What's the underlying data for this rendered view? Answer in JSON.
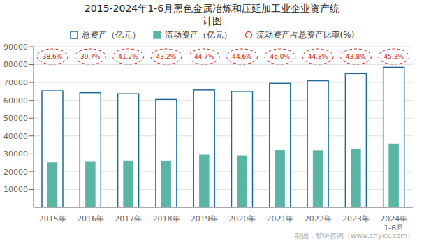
{
  "chart_data": {
    "type": "bar",
    "title": "2015-2024年1-6月黑色金属冶炼和压延加工业企业资产统\n计图",
    "categories": [
      "2015年",
      "2016年",
      "2017年",
      "2018年",
      "2019年",
      "2020年",
      "2021年",
      "2022年",
      "2023年",
      "2024年\n1-6月"
    ],
    "series": [
      {
        "name": "总资产（亿元）",
        "type": "bar",
        "color": "#1a6b9a",
        "values": [
          65300,
          64300,
          63700,
          60500,
          65800,
          65000,
          69500,
          71000,
          75000,
          78500
        ]
      },
      {
        "name": "流动资产（亿元）",
        "type": "bar",
        "color": "#5ab5a5",
        "values": [
          25200,
          25500,
          26200,
          26200,
          29400,
          29000,
          32000,
          31800,
          32800,
          35600
        ]
      },
      {
        "name": "流动资产占总资产比率(%)",
        "type": "text",
        "color": "#cc2222",
        "marker": "circle",
        "values": [
          38.6,
          39.7,
          41.2,
          43.2,
          44.7,
          44.6,
          46.0,
          44.8,
          43.8,
          45.3
        ],
        "value_labels": [
          "38.6%",
          "39.7%",
          "41.2%",
          "43.2%",
          "44.7%",
          "44.6%",
          "46.0%",
          "44.8%",
          "43.8%",
          "45.3%"
        ]
      }
    ],
    "ylim": [
      0,
      90000
    ],
    "yticks": [
      10000,
      20000,
      30000,
      40000,
      50000,
      60000,
      70000,
      80000,
      90000
    ],
    "grid": true,
    "legend": "top",
    "annotations": [
      "制图：智研咨询（www.chyxx.com）"
    ]
  }
}
